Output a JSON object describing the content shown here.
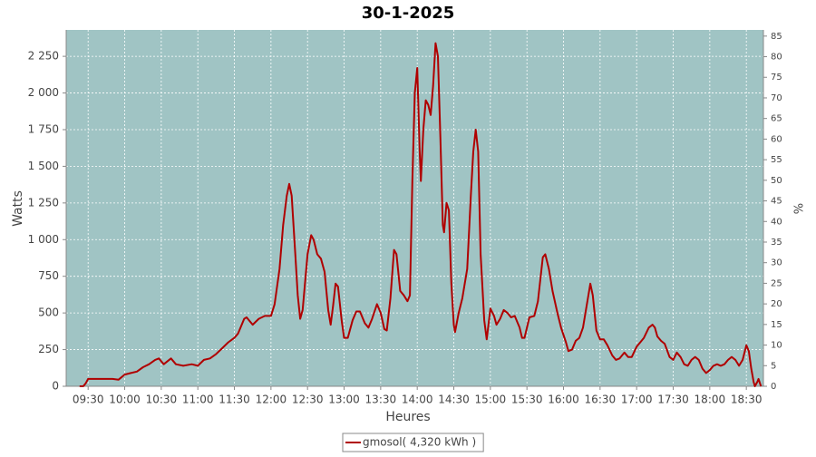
{
  "chart_data": {
    "type": "line",
    "title": "30-1-2025",
    "xlabel": "Heures",
    "ylabel": "Watts",
    "y2label": "%",
    "x": [
      "09:23",
      "09:26",
      "09:28",
      "09:30",
      "09:35",
      "09:40",
      "09:45",
      "09:50",
      "09:55",
      "10:00",
      "10:05",
      "10:10",
      "10:15",
      "10:20",
      "10:25",
      "10:28",
      "10:32",
      "10:38",
      "10:42",
      "10:48",
      "10:55",
      "11:00",
      "11:05",
      "11:10",
      "11:15",
      "11:20",
      "11:25",
      "11:30",
      "11:33",
      "11:38",
      "11:40",
      "11:45",
      "11:50",
      "11:55",
      "12:00",
      "12:03",
      "12:07",
      "12:10",
      "12:13",
      "12:15",
      "12:17",
      "12:20",
      "12:22",
      "12:24",
      "12:26",
      "12:30",
      "12:33",
      "12:35",
      "12:38",
      "12:41",
      "12:44",
      "12:47",
      "12:49",
      "12:51",
      "12:53",
      "12:55",
      "12:58",
      "13:00",
      "13:03",
      "13:07",
      "13:10",
      "13:13",
      "13:17",
      "13:20",
      "13:23",
      "13:27",
      "13:30",
      "13:33",
      "13:35",
      "13:38",
      "13:41",
      "13:43",
      "13:46",
      "13:49",
      "13:52",
      "13:54",
      "13:56",
      "13:58",
      "14:00",
      "14:02",
      "14:03",
      "14:05",
      "14:07",
      "14:09",
      "14:11",
      "14:13",
      "14:15",
      "14:17",
      "14:19",
      "14:21",
      "14:22",
      "14:24",
      "14:26",
      "14:28",
      "14:30",
      "14:31",
      "14:34",
      "14:37",
      "14:41",
      "14:44",
      "14:46",
      "14:48",
      "14:50",
      "14:52",
      "14:55",
      "14:57",
      "15:00",
      "15:03",
      "15:05",
      "15:08",
      "15:11",
      "15:14",
      "15:17",
      "15:20",
      "15:24",
      "15:26",
      "15:28",
      "15:32",
      "15:36",
      "15:39",
      "15:43",
      "15:45",
      "15:48",
      "15:51",
      "15:55",
      "15:58",
      "16:02",
      "16:04",
      "16:07",
      "16:10",
      "16:13",
      "16:16",
      "16:20",
      "16:22",
      "16:24",
      "16:27",
      "16:30",
      "16:33",
      "16:36",
      "16:40",
      "16:43",
      "16:46",
      "16:50",
      "16:53",
      "16:56",
      "17:00",
      "17:03",
      "17:06",
      "17:10",
      "17:13",
      "17:15",
      "17:17",
      "17:20",
      "17:23",
      "17:27",
      "17:30",
      "17:33",
      "17:36",
      "17:39",
      "17:42",
      "17:45",
      "17:48",
      "17:51",
      "17:54",
      "17:57",
      "18:00",
      "18:03",
      "18:06",
      "18:09",
      "18:12",
      "18:15",
      "18:18",
      "18:21",
      "18:24",
      "18:27",
      "18:30",
      "18:32",
      "18:34",
      "18:36",
      "18:37",
      "18:39",
      "18:40",
      "18:42"
    ],
    "series": [
      {
        "name": "gmosol( 4,320 kWh )",
        "color": "#b00000",
        "values": [
          0,
          0,
          20,
          50,
          50,
          50,
          50,
          50,
          45,
          80,
          90,
          100,
          130,
          150,
          180,
          190,
          150,
          190,
          150,
          140,
          150,
          140,
          180,
          190,
          220,
          260,
          300,
          330,
          360,
          460,
          470,
          420,
          460,
          480,
          480,
          560,
          800,
          1100,
          1300,
          1380,
          1300,
          900,
          620,
          460,
          520,
          900,
          1030,
          1000,
          900,
          870,
          780,
          520,
          420,
          550,
          700,
          680,
          450,
          330,
          330,
          450,
          510,
          510,
          430,
          400,
          460,
          560,
          500,
          390,
          380,
          600,
          930,
          900,
          650,
          620,
          580,
          620,
          1400,
          2000,
          2170,
          1600,
          1400,
          1750,
          1950,
          1920,
          1850,
          2050,
          2340,
          2250,
          1700,
          1100,
          1050,
          1250,
          1200,
          700,
          420,
          370,
          500,
          600,
          800,
          1300,
          1600,
          1750,
          1600,
          900,
          450,
          320,
          530,
          480,
          420,
          460,
          520,
          500,
          470,
          480,
          400,
          330,
          330,
          470,
          480,
          580,
          880,
          900,
          800,
          650,
          500,
          400,
          300,
          240,
          250,
          310,
          330,
          400,
          600,
          700,
          620,
          380,
          320,
          320,
          280,
          210,
          180,
          190,
          230,
          200,
          200,
          270,
          300,
          330,
          400,
          420,
          400,
          340,
          310,
          290,
          200,
          180,
          230,
          200,
          150,
          140,
          180,
          200,
          180,
          120,
          90,
          110,
          140,
          150,
          140,
          150,
          180,
          200,
          180,
          140,
          180,
          280,
          240,
          120,
          30,
          0,
          30,
          50,
          0
        ]
      }
    ],
    "xlim": [
      "09:12",
      "18:44"
    ],
    "xticks": [
      "09:30",
      "10:00",
      "10:30",
      "11:00",
      "11:30",
      "12:00",
      "12:30",
      "13:00",
      "13:30",
      "14:00",
      "14:30",
      "15:00",
      "15:30",
      "16:00",
      "16:30",
      "17:00",
      "17:30",
      "18:00",
      "18:30"
    ],
    "ylim": [
      0,
      2430
    ],
    "yticks": [
      0,
      250,
      500,
      750,
      {
        "value": 1000,
        "label": "1 000"
      },
      {
        "value": 1250,
        "label": "1 250"
      },
      {
        "value": 1500,
        "label": "1 500"
      },
      {
        "value": 1750,
        "label": "1 750"
      },
      {
        "value": 2000,
        "label": "2 000"
      },
      {
        "value": 2250,
        "label": "2 250"
      }
    ],
    "y2lim": [
      0,
      86.5
    ],
    "y2ticks": [
      0,
      5,
      10,
      15,
      20,
      25,
      30,
      35,
      40,
      45,
      50,
      55,
      60,
      65,
      70,
      75,
      80,
      85
    ],
    "grid": true,
    "legend": "bottom",
    "plot_background": "#a0c4c4"
  }
}
